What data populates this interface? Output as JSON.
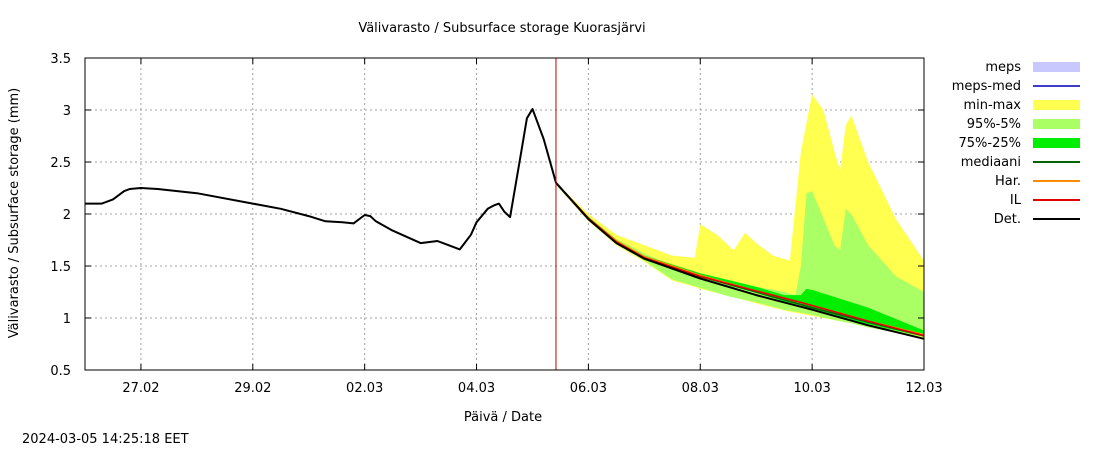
{
  "chart_data": {
    "type": "area",
    "title": "Välivarasto / Subsurface storage  Kuorasjärvi",
    "xlabel": "Päivä / Date",
    "ylabel": "Välivarasto / Subsurface storage (mm)",
    "footer": "2024-03-05 14:25:18 EET",
    "x_unit": "days from 26.02 00:00",
    "xlim": [
      0,
      15
    ],
    "ylim": [
      0.5,
      3.5
    ],
    "grid": true,
    "legend_position": "right",
    "x_ticks": [
      {
        "x": 1,
        "label": "27.02"
      },
      {
        "x": 3,
        "label": "29.02"
      },
      {
        "x": 5,
        "label": "02.03"
      },
      {
        "x": 7,
        "label": "04.03"
      },
      {
        "x": 9,
        "label": "06.03"
      },
      {
        "x": 11,
        "label": "08.03"
      },
      {
        "x": 13,
        "label": "10.03"
      },
      {
        "x": 15,
        "label": "12.03"
      }
    ],
    "y_ticks": [
      {
        "y": 0.5,
        "label": "0.5"
      },
      {
        "y": 1,
        "label": "1"
      },
      {
        "y": 1.5,
        "label": "1.5"
      },
      {
        "y": 2,
        "label": "2"
      },
      {
        "y": 2.5,
        "label": "2.5"
      },
      {
        "y": 3,
        "label": "3"
      },
      {
        "y": 3.5,
        "label": "3.5"
      }
    ],
    "forecast_start_x": 8.42,
    "legend": [
      {
        "key": "meps",
        "label": "meps",
        "kind": "box",
        "color": "#c8c8ff"
      },
      {
        "key": "meps_med",
        "label": "meps-med",
        "kind": "line",
        "color": "#3c3cc8"
      },
      {
        "key": "minmax",
        "label": "min-max",
        "kind": "box",
        "color": "#ffff50"
      },
      {
        "key": "p95_5",
        "label": "95%-5%",
        "kind": "box",
        "color": "#aaff64"
      },
      {
        "key": "p75_25",
        "label": "75%-25%",
        "kind": "box",
        "color": "#00ee00"
      },
      {
        "key": "mediaani",
        "label": "mediaani",
        "kind": "line",
        "color": "#006400"
      },
      {
        "key": "har",
        "label": "Har.",
        "kind": "line",
        "color": "#ff8c00"
      },
      {
        "key": "il",
        "label": "IL",
        "kind": "line",
        "color": "#e00000"
      },
      {
        "key": "det",
        "label": "Det.",
        "kind": "line",
        "color": "#000000"
      }
    ],
    "series": [
      {
        "key": "det",
        "name": "Det.",
        "color": "#000000",
        "x": [
          0,
          0.3,
          0.5,
          0.7,
          0.8,
          1.0,
          1.3,
          2.0,
          3.0,
          3.5,
          4.0,
          4.3,
          4.6,
          4.8,
          5.0,
          5.1,
          5.2,
          5.5,
          6.0,
          6.3,
          6.5,
          6.7,
          6.9,
          7.0,
          7.2,
          7.3,
          7.4,
          7.5,
          7.6,
          7.8,
          7.9,
          8.0,
          8.2,
          8.42,
          9.0,
          9.5,
          10.0,
          11.0,
          12.0,
          13.0,
          14.0,
          15.0
        ],
        "y": [
          2.1,
          2.1,
          2.14,
          2.22,
          2.24,
          2.25,
          2.24,
          2.2,
          2.1,
          2.05,
          1.98,
          1.93,
          1.92,
          1.91,
          1.99,
          1.98,
          1.93,
          1.84,
          1.72,
          1.74,
          1.7,
          1.66,
          1.8,
          1.92,
          2.05,
          2.08,
          2.1,
          2.02,
          1.97,
          2.6,
          2.92,
          3.01,
          2.72,
          2.3,
          1.95,
          1.72,
          1.57,
          1.38,
          1.22,
          1.08,
          0.93,
          0.8
        ]
      },
      {
        "key": "mediaani",
        "name": "mediaani",
        "color": "#006400",
        "x": [
          8.42,
          9.0,
          9.5,
          10.0,
          11.0,
          12.0,
          13.0,
          14.0,
          15.0
        ],
        "y": [
          2.3,
          1.96,
          1.74,
          1.58,
          1.4,
          1.25,
          1.1,
          0.96,
          0.83
        ]
      },
      {
        "key": "har",
        "name": "Har.",
        "color": "#ff8c00",
        "x": [
          8.42,
          9.0,
          9.5,
          10.0,
          11.0,
          12.0,
          13.0,
          14.0,
          15.0
        ],
        "y": [
          2.3,
          1.96,
          1.74,
          1.59,
          1.41,
          1.26,
          1.12,
          0.97,
          0.84
        ]
      },
      {
        "key": "il",
        "name": "IL",
        "color": "#e00000",
        "x": [
          8.42,
          9.0,
          9.5,
          10.0,
          11.0,
          12.0,
          12.8,
          13.0,
          14.0,
          15.0
        ],
        "y": [
          2.3,
          1.96,
          1.73,
          1.58,
          1.4,
          1.26,
          1.15,
          1.12,
          0.97,
          0.83
        ]
      }
    ],
    "bands": [
      {
        "key": "minmax",
        "name": "min-max",
        "color": "#ffff50",
        "x": [
          8.42,
          9.0,
          9.5,
          10.0,
          10.5,
          10.9,
          11.0,
          11.3,
          11.6,
          11.8,
          12.0,
          12.3,
          12.6,
          12.8,
          13.0,
          13.2,
          13.4,
          13.5,
          13.6,
          13.7,
          14.0,
          14.5,
          15.0
        ],
        "upper": [
          2.3,
          2.0,
          1.8,
          1.7,
          1.6,
          1.58,
          1.9,
          1.8,
          1.65,
          1.82,
          1.72,
          1.6,
          1.55,
          2.6,
          3.15,
          3.0,
          2.6,
          2.42,
          2.85,
          2.95,
          2.5,
          1.95,
          1.55
        ],
        "lower": [
          2.28,
          1.93,
          1.7,
          1.54,
          1.36,
          1.3,
          1.28,
          1.24,
          1.2,
          1.17,
          1.14,
          1.1,
          1.06,
          1.04,
          1.02,
          1.0,
          0.98,
          0.97,
          0.96,
          0.95,
          0.91,
          0.86,
          0.81
        ]
      },
      {
        "key": "p95_5",
        "name": "95%-5%",
        "color": "#aaff64",
        "x": [
          8.42,
          9.0,
          9.5,
          10.0,
          10.5,
          11.0,
          11.5,
          12.0,
          12.5,
          12.7,
          12.8,
          12.9,
          13.0,
          13.4,
          13.5,
          13.6,
          13.7,
          14.0,
          14.5,
          15.0
        ],
        "upper": [
          2.3,
          1.98,
          1.76,
          1.62,
          1.5,
          1.42,
          1.35,
          1.3,
          1.25,
          1.22,
          1.5,
          2.2,
          2.22,
          1.7,
          1.65,
          2.05,
          2.0,
          1.7,
          1.4,
          1.25
        ],
        "lower": [
          2.28,
          1.94,
          1.71,
          1.55,
          1.37,
          1.29,
          1.21,
          1.15,
          1.08,
          1.06,
          1.05,
          1.04,
          1.03,
          0.98,
          0.97,
          0.96,
          0.95,
          0.91,
          0.86,
          0.82
        ]
      },
      {
        "key": "p75_25",
        "name": "75%-25%",
        "color": "#00ee00",
        "x": [
          8.42,
          9.0,
          9.5,
          10.0,
          11.0,
          12.0,
          12.5,
          12.8,
          12.9,
          13.0,
          14.0,
          15.0
        ],
        "upper": [
          2.3,
          1.97,
          1.75,
          1.6,
          1.43,
          1.3,
          1.22,
          1.22,
          1.28,
          1.27,
          1.1,
          0.88
        ],
        "lower": [
          2.29,
          1.95,
          1.72,
          1.57,
          1.39,
          1.24,
          1.16,
          1.12,
          1.1,
          1.08,
          0.94,
          0.82
        ]
      }
    ]
  }
}
